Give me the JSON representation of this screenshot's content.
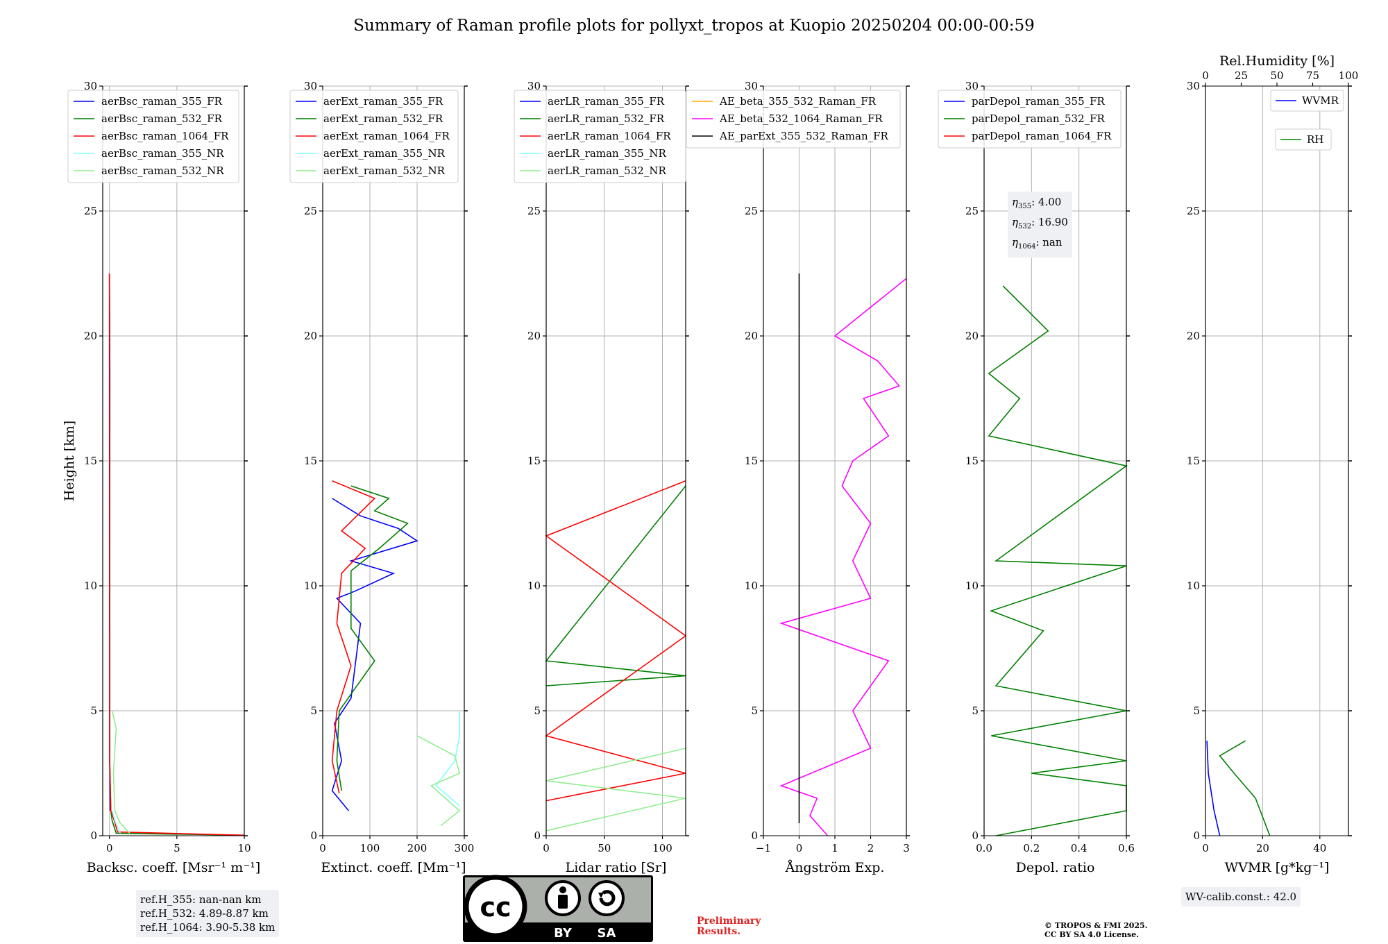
{
  "title": "Summary of Raman profile plots for pollyxt_tropos at Kuopio 20250204 00:00-00:59",
  "colors": {
    "blue": "#0000ff",
    "green": "#008000",
    "red": "#ff0000",
    "cyan": "#80ffff",
    "lightgreen": "#90ee90",
    "orange": "#ffa500",
    "magenta": "#ff00ff",
    "black": "#000000"
  },
  "ref_heights": [
    "ref.H_355: nan-nan km",
    "ref.H_532: 4.89-8.87 km",
    "ref.H_1064: 3.90-5.38 km"
  ],
  "eta_box": [
    {
      "sym": "η",
      "sub": "355",
      "val": ": 4.00"
    },
    {
      "sym": "η",
      "sub": "532",
      "val": ": 16.90"
    },
    {
      "sym": "η",
      "sub": "1064",
      "val": ": nan"
    }
  ],
  "wv_calib": "WV-calib.const.: 42.0",
  "preliminary": [
    "Preliminary",
    "Results."
  ],
  "copyright": [
    "© TROPOS & FMI 2025.",
    "CC BY SA 4.0 License."
  ],
  "license_badge": {
    "by": "BY",
    "sa": "SA",
    "cc": "cc"
  },
  "chart_data": [
    {
      "type": "line",
      "id": "bsc",
      "xlabel": "Backsc. coeff. [Msr⁻¹ m⁻¹]",
      "ylabel": "Height [km]",
      "xlim": [
        -0.5,
        10
      ],
      "ylim": [
        0,
        30
      ],
      "xticks": [
        0,
        5,
        10
      ],
      "xticklabels": [
        "0",
        "5",
        "10"
      ],
      "yticks": [
        0,
        5,
        10,
        15,
        20,
        25,
        30
      ],
      "series": [
        {
          "name": "aerBsc_raman_355_FR",
          "color": "blue",
          "points": [
            [
              0.05,
              1.0
            ],
            [
              0.02,
              3
            ],
            [
              0.01,
              10
            ],
            [
              0,
              20
            ],
            [
              0,
              22.5
            ]
          ]
        },
        {
          "name": "aerBsc_raman_532_FR",
          "color": "green",
          "points": [
            [
              10,
              0.02
            ],
            [
              0.5,
              0.1
            ],
            [
              0.2,
              0.6
            ],
            [
              0.1,
              1.0
            ],
            [
              0.02,
              3
            ],
            [
              0.02,
              10
            ],
            [
              0.03,
              18.5
            ],
            [
              0,
              22.5
            ]
          ]
        },
        {
          "name": "aerBsc_raman_1064_FR",
          "color": "red",
          "points": [
            [
              10,
              0.02
            ],
            [
              0.6,
              0.15
            ],
            [
              0.3,
              0.7
            ],
            [
              0.1,
              1.0
            ],
            [
              0.02,
              3
            ],
            [
              0.01,
              10
            ],
            [
              0.02,
              20
            ],
            [
              0,
              22.5
            ]
          ]
        },
        {
          "name": "aerBsc_raman_355_NR",
          "color": "cyan",
          "points": [
            [
              0.8,
              0.1
            ],
            [
              0.4,
              0.6
            ],
            [
              0.2,
              1.0
            ]
          ]
        },
        {
          "name": "aerBsc_raman_532_NR",
          "color": "lightgreen",
          "points": [
            [
              1.5,
              0.1
            ],
            [
              0.8,
              0.5
            ],
            [
              0.4,
              1.0
            ],
            [
              0.3,
              2.5
            ],
            [
              0.5,
              4.3
            ],
            [
              0.2,
              5.0
            ]
          ]
        }
      ]
    },
    {
      "type": "line",
      "id": "ext",
      "xlabel": "Extinct. coeff. [Mm⁻¹]",
      "xlim": [
        0,
        300
      ],
      "ylim": [
        0,
        30
      ],
      "xticks": [
        0,
        100,
        200,
        300
      ],
      "xticklabels": [
        "0",
        "100",
        "200",
        "300"
      ],
      "yticks": [
        0,
        5,
        10,
        15,
        20,
        25,
        30
      ],
      "series": [
        {
          "name": "aerExt_raman_355_FR",
          "color": "blue",
          "points": [
            [
              55,
              1.0
            ],
            [
              20,
              1.8
            ],
            [
              40,
              3
            ],
            [
              25,
              4.5
            ],
            [
              60,
              5.5
            ],
            [
              80,
              8.5
            ],
            [
              30,
              9.5
            ],
            [
              70,
              9.8
            ],
            [
              150,
              10.5
            ],
            [
              60,
              11
            ],
            [
              200,
              11.8
            ],
            [
              160,
              12.3
            ],
            [
              80,
              12.8
            ],
            [
              20,
              13.5
            ]
          ]
        },
        {
          "name": "aerExt_raman_532_FR",
          "color": "green",
          "points": [
            [
              40,
              1.8
            ],
            [
              30,
              3
            ],
            [
              35,
              5
            ],
            [
              110,
              7
            ],
            [
              60,
              8.3
            ],
            [
              60,
              10.6
            ],
            [
              120,
              11.5
            ],
            [
              180,
              12.5
            ],
            [
              110,
              13
            ],
            [
              140,
              13.5
            ],
            [
              60,
              14
            ]
          ]
        },
        {
          "name": "aerExt_raman_1064_FR",
          "color": "red",
          "points": [
            [
              35,
              1.7
            ],
            [
              20,
              3
            ],
            [
              30,
              5
            ],
            [
              60,
              6.8
            ],
            [
              30,
              8.5
            ],
            [
              40,
              10.5
            ],
            [
              90,
              11.5
            ],
            [
              40,
              12.2
            ],
            [
              110,
              13.5
            ],
            [
              20,
              14.2
            ]
          ]
        },
        {
          "name": "aerExt_raman_355_NR",
          "color": "cyan",
          "points": [
            [
              290,
              1.2
            ],
            [
              240,
              2
            ],
            [
              280,
              3
            ],
            [
              290,
              4
            ],
            [
              290,
              5
            ]
          ]
        },
        {
          "name": "aerExt_raman_532_NR",
          "color": "lightgreen",
          "points": [
            [
              250,
              0.4
            ],
            [
              290,
              1.0
            ],
            [
              230,
              2
            ],
            [
              290,
              2.5
            ],
            [
              280,
              3.2
            ],
            [
              200,
              4
            ]
          ]
        }
      ]
    },
    {
      "type": "line",
      "id": "lr",
      "xlabel": "Lidar ratio [Sr]",
      "xlim": [
        0,
        120
      ],
      "ylim": [
        0,
        30
      ],
      "xticks": [
        0,
        50,
        100
      ],
      "xticklabels": [
        "0",
        "50",
        "100"
      ],
      "yticks": [
        0,
        5,
        10,
        15,
        20,
        25,
        30
      ],
      "series": [
        {
          "name": "aerLR_raman_355_FR",
          "color": "blue",
          "points": []
        },
        {
          "name": "aerLR_raman_532_FR",
          "color": "green",
          "points": [
            [
              0,
              6
            ],
            [
              120,
              6.4
            ],
            [
              0,
              7
            ],
            [
              120,
              14
            ]
          ]
        },
        {
          "name": "aerLR_raman_1064_FR",
          "color": "red",
          "points": [
            [
              0,
              1.4
            ],
            [
              120,
              2.5
            ],
            [
              0,
              4
            ],
            [
              120,
              8
            ],
            [
              0,
              12
            ],
            [
              120,
              14.2
            ]
          ]
        },
        {
          "name": "aerLR_raman_355_NR",
          "color": "cyan",
          "points": []
        },
        {
          "name": "aerLR_raman_532_NR",
          "color": "lightgreen",
          "points": [
            [
              0,
              0.2
            ],
            [
              120,
              1.5
            ],
            [
              0,
              2.2
            ],
            [
              120,
              3.5
            ]
          ]
        }
      ]
    },
    {
      "type": "line",
      "id": "ae",
      "xlabel": "Ångström Exp.",
      "xlim": [
        -1,
        3
      ],
      "ylim": [
        0,
        30
      ],
      "xticks": [
        -1,
        0,
        1,
        2,
        3
      ],
      "xticklabels": [
        "−1",
        "0",
        "1",
        "2",
        "3"
      ],
      "yticks": [
        0,
        5,
        10,
        15,
        20,
        25,
        30
      ],
      "series": [
        {
          "name": "AE_beta_355_532_Raman_FR",
          "color": "orange",
          "points": []
        },
        {
          "name": "AE_beta_532_1064_Raman_FR",
          "color": "magenta",
          "points": [
            [
              0.8,
              0
            ],
            [
              0.3,
              0.8
            ],
            [
              0.5,
              1.5
            ],
            [
              -0.5,
              2
            ],
            [
              2,
              3.5
            ],
            [
              1.5,
              5
            ],
            [
              2.5,
              7
            ],
            [
              1.5,
              7.5
            ],
            [
              -0.5,
              8.5
            ],
            [
              2,
              9.5
            ],
            [
              1.5,
              11
            ],
            [
              2,
              12.5
            ],
            [
              1.2,
              14
            ],
            [
              1.5,
              15
            ],
            [
              2.5,
              16
            ],
            [
              1.8,
              17.5
            ],
            [
              2.8,
              18
            ],
            [
              2.2,
              19
            ],
            [
              1,
              20
            ],
            [
              3,
              22.3
            ]
          ]
        },
        {
          "name": "AE_parExt_355_532_Raman_FR",
          "color": "black",
          "points": [
            [
              0,
              0.5
            ],
            [
              0,
              22.5
            ]
          ]
        }
      ]
    },
    {
      "type": "line",
      "id": "depol",
      "xlabel": "Depol. ratio",
      "xlim": [
        0,
        0.6
      ],
      "ylim": [
        0,
        30
      ],
      "xticks": [
        0,
        0.2,
        0.4,
        0.6
      ],
      "xticklabels": [
        "0.0",
        "0.2",
        "0.4",
        "0.6"
      ],
      "yticks": [
        0,
        5,
        10,
        15,
        20,
        25,
        30
      ],
      "series": [
        {
          "name": "parDepol_raman_355_FR",
          "color": "blue",
          "points": []
        },
        {
          "name": "parDepol_raman_532_FR",
          "color": "green",
          "points": [
            [
              0.05,
              0
            ],
            [
              0.6,
              1.0
            ],
            [
              0.6,
              2
            ],
            [
              0.2,
              2.5
            ],
            [
              0.6,
              3
            ],
            [
              0.03,
              4
            ],
            [
              0.6,
              5
            ],
            [
              0.05,
              6
            ],
            [
              0.25,
              8.2
            ],
            [
              0.03,
              9
            ],
            [
              0.6,
              10.8
            ],
            [
              0.05,
              11
            ],
            [
              0.6,
              14.8
            ],
            [
              0.02,
              16
            ],
            [
              0.15,
              17.5
            ],
            [
              0.02,
              18.5
            ],
            [
              0.27,
              20.2
            ],
            [
              0.08,
              22
            ]
          ]
        },
        {
          "name": "parDepol_raman_1064_FR",
          "color": "red",
          "points": []
        }
      ]
    },
    {
      "type": "line",
      "id": "wv",
      "xlabel": "WVMR [g*kg⁻¹]",
      "x2label": "Rel.Humidity [%]",
      "xlim": [
        0,
        50
      ],
      "ylim": [
        0,
        30
      ],
      "xticks": [
        0,
        20,
        40
      ],
      "xticklabels": [
        "0",
        "20",
        "40"
      ],
      "x2lim": [
        0,
        100
      ],
      "x2ticks": [
        0,
        25,
        50,
        75,
        100
      ],
      "x2ticklabels": [
        "0",
        "25",
        "50",
        "75",
        "100"
      ],
      "yticks": [
        0,
        5,
        10,
        15,
        20,
        25,
        30
      ],
      "series": [
        {
          "name": "WVMR",
          "color": "blue",
          "points": [
            [
              5,
              0
            ],
            [
              3,
              1
            ],
            [
              1,
              2.5
            ],
            [
              0.5,
              3.8
            ]
          ]
        },
        {
          "name": "RH",
          "color": "green",
          "axis": "x2",
          "points": [
            [
              45,
              0
            ],
            [
              35,
              1.5
            ],
            [
              20,
              2.5
            ],
            [
              10,
              3.2
            ],
            [
              28,
              3.8
            ]
          ]
        }
      ]
    }
  ]
}
